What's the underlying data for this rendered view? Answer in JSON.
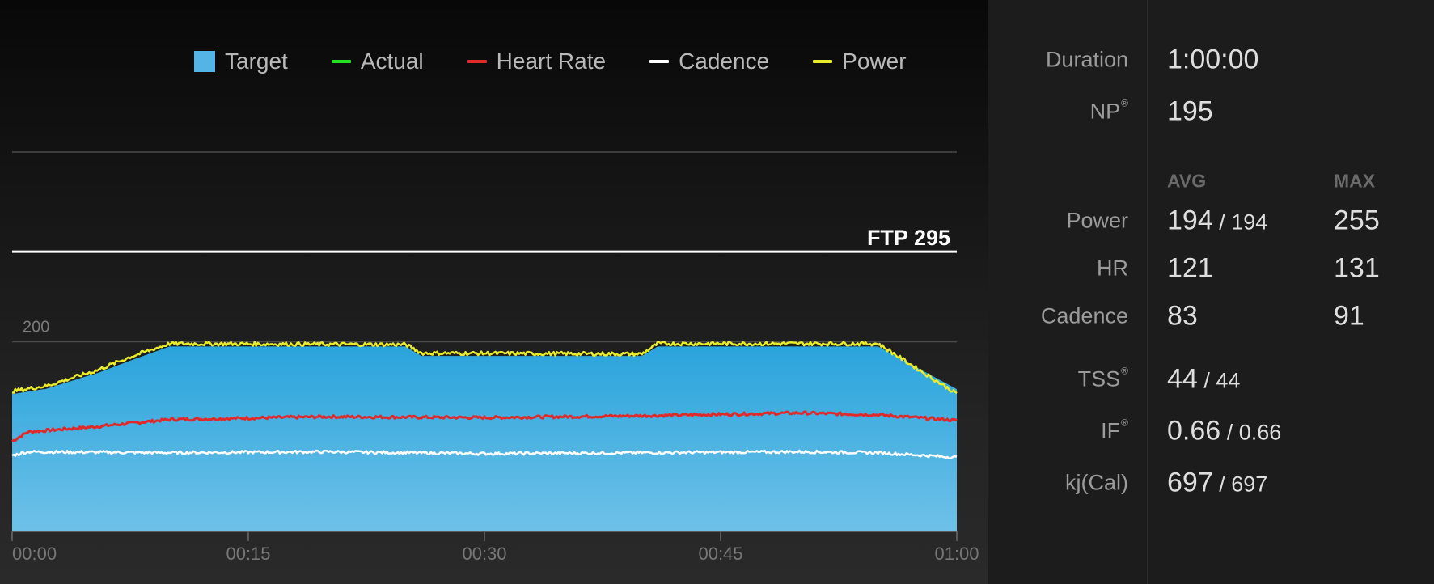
{
  "legend": [
    {
      "label": "Target",
      "color": "#55b4e6",
      "kind": "box"
    },
    {
      "label": "Actual",
      "color": "#22e022",
      "kind": "line"
    },
    {
      "label": "Heart Rate",
      "color": "#e02a2a",
      "kind": "line"
    },
    {
      "label": "Cadence",
      "color": "#ffffff",
      "kind": "line"
    },
    {
      "label": "Power",
      "color": "#e8ec2a",
      "kind": "line"
    }
  ],
  "chart_data": {
    "type": "area",
    "xlabel": "",
    "ylabel": "",
    "x_ticks": [
      "00:00",
      "00:15",
      "00:30",
      "00:45",
      "01:00"
    ],
    "x_range_min": [
      0,
      60
    ],
    "y_range": [
      0,
      400
    ],
    "y_gridlines": [
      200,
      400
    ],
    "y_tick_labels": [
      "200"
    ],
    "ftp_line": {
      "label": "FTP 295",
      "value": 295
    },
    "series": [
      {
        "name": "Target",
        "color": "#55b4e6",
        "x": [
          0,
          0.1,
          2,
          2.1,
          5,
          5.1,
          7.5,
          7.5,
          10,
          10,
          25,
          26,
          40,
          41,
          55,
          60
        ],
        "y": [
          145,
          145,
          150,
          150,
          165,
          165,
          180,
          180,
          195,
          195,
          195,
          185,
          185,
          195,
          195,
          150
        ]
      },
      {
        "name": "Power",
        "color": "#e8ec2a",
        "x": [
          0,
          0.1,
          2,
          2.1,
          5,
          5.1,
          7.5,
          7.5,
          10,
          10,
          25,
          26,
          40,
          41,
          55,
          60
        ],
        "y": [
          148,
          148,
          153,
          153,
          168,
          168,
          184,
          184,
          198,
          198,
          197,
          188,
          187,
          198,
          198,
          145
        ]
      },
      {
        "name": "Heart Rate",
        "color": "#e02a2a",
        "x": [
          0,
          1,
          5,
          10,
          20,
          30,
          40,
          50,
          55,
          60
        ],
        "y": [
          95,
          105,
          110,
          118,
          121,
          120,
          122,
          125,
          123,
          117
        ]
      },
      {
        "name": "Cadence",
        "color": "#ffffff",
        "x": [
          0,
          1,
          10,
          20,
          30,
          40,
          50,
          55,
          60
        ],
        "y": [
          80,
          84,
          83,
          84,
          82,
          83,
          84,
          83,
          78
        ]
      }
    ]
  },
  "stats": {
    "duration": {
      "label": "Duration",
      "value": "1:00:00"
    },
    "np": {
      "label": "NP",
      "sup": "®",
      "value": "195"
    },
    "col_avg": "AVG",
    "col_max": "MAX",
    "power": {
      "label": "Power",
      "avg": "194",
      "avg_sep": " / ",
      "avg_sub": "194",
      "max": "255"
    },
    "hr": {
      "label": "HR",
      "avg": "121",
      "max": "131"
    },
    "cadence": {
      "label": "Cadence",
      "avg": "83",
      "max": "91"
    },
    "tss": {
      "label": "TSS",
      "sup": "®",
      "value": "44",
      "sep": " / ",
      "sub": "44"
    },
    "if": {
      "label": "IF",
      "sup": "®",
      "value": "0.66",
      "sep": " / ",
      "sub": "0.66"
    },
    "kj": {
      "label": "kj(Cal)",
      "value": "697",
      "sep": " / ",
      "sub": "697"
    }
  }
}
